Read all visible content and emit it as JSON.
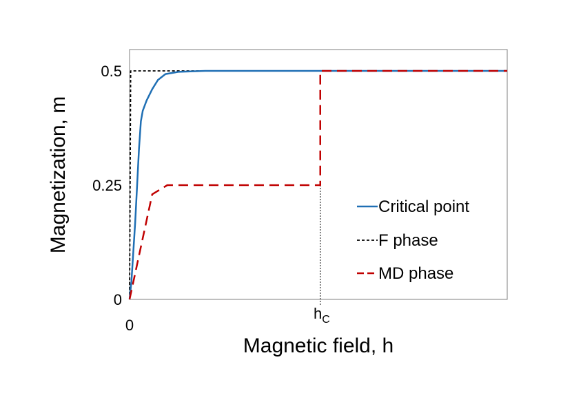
{
  "chart_data": {
    "type": "line",
    "title": "",
    "xlabel": "Magnetic field, h",
    "ylabel": "Magnetization, m",
    "xlim": [
      0,
      1
    ],
    "ylim": [
      0,
      0.55
    ],
    "y_ticks": [
      {
        "value": 0,
        "label": "0"
      },
      {
        "value": 0.25,
        "label": "0.25"
      },
      {
        "value": 0.5,
        "label": "0.5"
      }
    ],
    "x_ticks": [
      {
        "value": 0,
        "label": "0"
      }
    ],
    "hc_marker": {
      "value": 0.505,
      "label_main": "h",
      "label_sub": "C"
    },
    "grid": false,
    "legend_position": "right",
    "series": [
      {
        "name": "Critical point",
        "color": "#1f6fb4",
        "dash": "solid",
        "points": [
          [
            0,
            0
          ],
          [
            0.005,
            0.04
          ],
          [
            0.015,
            0.17
          ],
          [
            0.025,
            0.33
          ],
          [
            0.03,
            0.39
          ],
          [
            0.035,
            0.413
          ],
          [
            0.045,
            0.435
          ],
          [
            0.06,
            0.46
          ],
          [
            0.075,
            0.48
          ],
          [
            0.095,
            0.493
          ],
          [
            0.13,
            0.498
          ],
          [
            0.2,
            0.5
          ],
          [
            1,
            0.5
          ]
        ]
      },
      {
        "name": "F phase",
        "color": "#000000",
        "dash": "short",
        "points": [
          [
            0,
            0
          ],
          [
            0.003,
            0.5
          ],
          [
            1,
            0.5
          ]
        ]
      },
      {
        "name": "MD phase",
        "color": "#c00000",
        "dash": "long",
        "points": [
          [
            0,
            0
          ],
          [
            0.06,
            0.23
          ],
          [
            0.1,
            0.25
          ],
          [
            0.505,
            0.25
          ],
          [
            0.505,
            0.5
          ],
          [
            1,
            0.5
          ]
        ]
      }
    ]
  }
}
